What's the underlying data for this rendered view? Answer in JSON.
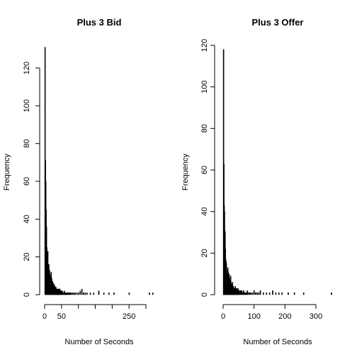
{
  "chart_data": [
    {
      "type": "bar",
      "title": "Plus 3 Bid",
      "xlabel": "Number of Seconds",
      "ylabel": "Frequency",
      "xlim": [
        0,
        325
      ],
      "ylim": [
        0,
        132
      ],
      "x_ticks": [
        0,
        50,
        100,
        150,
        200,
        250,
        300
      ],
      "x_tick_labels": [
        "0",
        "50",
        "",
        "",
        "",
        "250",
        ""
      ],
      "y_ticks": [
        0,
        20,
        40,
        60,
        80,
        100,
        120
      ],
      "bin_width": 1.7,
      "x": [
        1,
        2,
        3,
        4,
        5,
        6,
        7,
        8,
        9,
        10,
        11,
        12,
        13,
        14,
        15,
        16,
        17,
        18,
        19,
        20,
        21,
        22,
        23,
        24,
        25,
        26,
        27,
        28,
        29,
        30,
        31,
        32,
        33,
        34,
        35,
        36,
        37,
        38,
        39,
        40,
        41,
        42,
        43,
        44,
        45,
        46,
        47,
        48,
        49,
        50,
        52,
        54,
        56,
        58,
        60,
        62,
        64,
        66,
        68,
        70,
        72,
        75,
        78,
        82,
        86,
        90,
        95,
        100,
        105,
        110,
        115,
        120,
        125,
        135,
        145,
        160,
        175,
        190,
        205,
        250,
        310,
        320
      ],
      "values": [
        131,
        71,
        60,
        45,
        36,
        25,
        20,
        17,
        23,
        15,
        14,
        16,
        12,
        13,
        11,
        8,
        10,
        7,
        12,
        9,
        8,
        6,
        7,
        5,
        5,
        6,
        4,
        4,
        5,
        3,
        4,
        3,
        4,
        3,
        3,
        3,
        3,
        2,
        3,
        3,
        3,
        2,
        2,
        3,
        3,
        2,
        1,
        2,
        2,
        2,
        2,
        1,
        1,
        2,
        1,
        1,
        1,
        1,
        1,
        1,
        1,
        1,
        1,
        1,
        1,
        1,
        1,
        1,
        2,
        3,
        1,
        1,
        1,
        1,
        1,
        2,
        1,
        1,
        1,
        1,
        1,
        1
      ]
    },
    {
      "type": "bar",
      "title": "Plus 3 Offer",
      "xlabel": "Number of Seconds",
      "ylabel": "Frequency",
      "xlim": [
        0,
        355
      ],
      "ylim": [
        0,
        120
      ],
      "x_ticks": [
        0,
        100,
        200,
        300
      ],
      "x_tick_labels": [
        "0",
        "100",
        "200",
        "300"
      ],
      "y_ticks": [
        0,
        20,
        40,
        60,
        80,
        100,
        120
      ],
      "bin_width": 1.9,
      "x": [
        1,
        2,
        3,
        4,
        5,
        6,
        7,
        8,
        9,
        10,
        11,
        12,
        13,
        14,
        15,
        16,
        17,
        18,
        19,
        20,
        21,
        22,
        23,
        24,
        25,
        26,
        27,
        28,
        29,
        30,
        31,
        32,
        33,
        34,
        35,
        36,
        37,
        38,
        39,
        40,
        41,
        42,
        43,
        44,
        45,
        46,
        47,
        48,
        49,
        50,
        52,
        54,
        56,
        58,
        60,
        62,
        64,
        66,
        68,
        70,
        72,
        75,
        78,
        82,
        86,
        90,
        95,
        100,
        105,
        110,
        115,
        120,
        130,
        140,
        150,
        160,
        170,
        180,
        190,
        210,
        230,
        260,
        350
      ],
      "values": [
        118,
        63,
        43,
        40,
        31,
        30,
        22,
        17,
        16,
        15,
        12,
        10,
        10,
        8,
        13,
        11,
        6,
        5,
        10,
        8,
        7,
        6,
        5,
        9,
        6,
        5,
        4,
        3,
        5,
        6,
        4,
        3,
        4,
        3,
        3,
        3,
        2,
        3,
        4,
        3,
        2,
        3,
        2,
        3,
        2,
        2,
        2,
        3,
        2,
        2,
        1,
        2,
        2,
        1,
        2,
        1,
        1,
        2,
        1,
        1,
        1,
        1,
        2,
        1,
        1,
        1,
        1,
        2,
        1,
        1,
        1,
        2,
        1,
        1,
        1,
        2,
        1,
        1,
        1,
        1,
        1,
        1,
        1
      ]
    }
  ]
}
